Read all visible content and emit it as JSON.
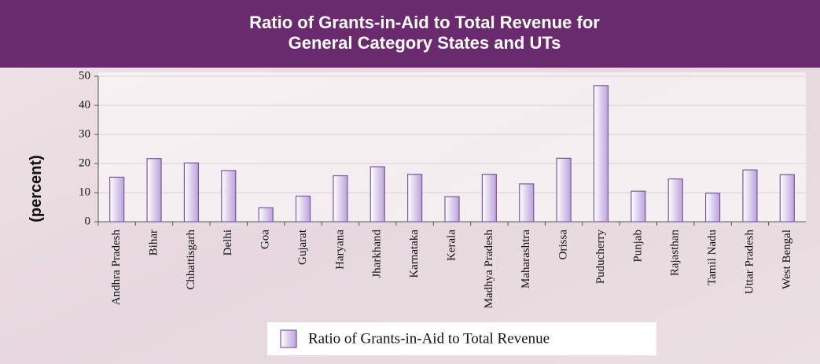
{
  "chart_data": {
    "type": "bar",
    "title": [
      "Ratio of Grants-in-Aid to Total Revenue for",
      "General Category States and UTs"
    ],
    "y_label": "(percent)",
    "categories": [
      "Andhra Pradesh",
      "Bihar",
      "Chhattisgarh",
      "Delhi",
      "Goa",
      "Gujarat",
      "Haryana",
      "Jharkhand",
      "Karnataka",
      "Kerala",
      "Madhya Pradesh",
      "Maharashtra",
      "Orissa",
      "Puducherry",
      "Punjab",
      "Rajasthan",
      "Tamil Nadu",
      "Uttar Pradesh",
      "West Bengal"
    ],
    "series": [
      {
        "name": "Ratio of Grants-in-Aid to Total Revenue",
        "color": "#dccdf0",
        "values": [
          15.3,
          21.7,
          20.2,
          17.6,
          4.8,
          8.8,
          15.8,
          18.9,
          16.3,
          8.6,
          16.3,
          13.0,
          21.8,
          46.8,
          10.5,
          14.7,
          9.8,
          17.8,
          16.2
        ]
      }
    ],
    "ylim": [
      0,
      50
    ],
    "yticks": [
      0,
      10,
      20,
      30,
      40,
      50
    ],
    "grid": true,
    "legend": "bottom"
  }
}
